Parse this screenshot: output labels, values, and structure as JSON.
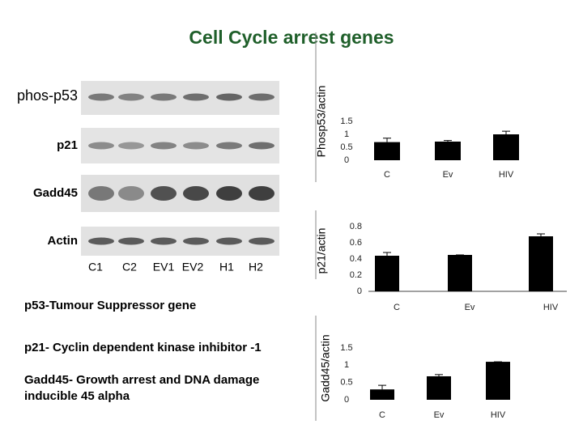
{
  "title": "Cell Cycle arrest genes",
  "blot": {
    "rows": [
      "phos-p53",
      "p21",
      "Gadd45",
      "Actin"
    ],
    "lanes": [
      "C1",
      "C2",
      "EV1",
      "EV2",
      "H1",
      "H2"
    ]
  },
  "notes": [
    "p53-Tumour Suppressor gene",
    "p21- Cyclin dependent kinase inhibitor -1",
    "Gadd45- Growth arrest and DNA damage inducible 45 alpha"
  ],
  "chart_data": [
    {
      "type": "bar",
      "y_label": "Phosp53/actin",
      "categories": [
        "C",
        "Ev",
        "HIV"
      ],
      "values": [
        0.7,
        0.72,
        1.0
      ],
      "errors": [
        0.15,
        0.04,
        0.12
      ],
      "color": "#000000",
      "ylim": [
        0,
        1.5
      ],
      "yticks": [
        0,
        0.5,
        1,
        1.5
      ]
    },
    {
      "type": "bar",
      "y_label": "p21/actin",
      "categories": [
        "C",
        "Ev",
        "HIV"
      ],
      "values": [
        0.44,
        0.45,
        0.68
      ],
      "errors": [
        0.04,
        0,
        0.03
      ],
      "color": "#000000",
      "ylim": [
        0,
        0.8
      ],
      "yticks": [
        0,
        0.2,
        0.4,
        0.6,
        0.8
      ]
    },
    {
      "type": "bar",
      "y_label": "Gadd45/actin",
      "categories": [
        "C",
        "Ev",
        "HIV"
      ],
      "values": [
        0.3,
        0.68,
        1.1
      ],
      "errors": [
        0.12,
        0.05,
        0
      ],
      "color": "#000000",
      "ylim": [
        0,
        1.5
      ],
      "yticks": [
        0,
        0.5,
        1,
        1.5
      ]
    }
  ]
}
